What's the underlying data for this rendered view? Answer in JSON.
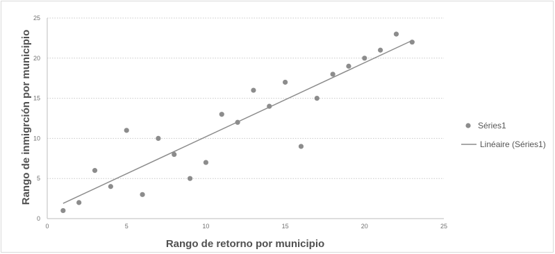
{
  "chart_data": {
    "type": "scatter",
    "title": "",
    "xlabel": "Rango de retorno por municipio",
    "ylabel": "Rango de inmigrción por municipio",
    "xlim": [
      0,
      25
    ],
    "ylim": [
      0,
      25
    ],
    "xticks": [
      "0",
      "5",
      "10",
      "15",
      "20",
      "25"
    ],
    "yticks": [
      "0",
      "5",
      "10",
      "15",
      "20",
      "25"
    ],
    "grid": "horizontal",
    "legend_position": "right",
    "series": [
      {
        "name": "Séries1",
        "color": "#8c8c8c",
        "points": [
          [
            1,
            1
          ],
          [
            2,
            2
          ],
          [
            3,
            6
          ],
          [
            4,
            4
          ],
          [
            5,
            11
          ],
          [
            6,
            3
          ],
          [
            7,
            10
          ],
          [
            8,
            8
          ],
          [
            9,
            5
          ],
          [
            10,
            7
          ],
          [
            11,
            13
          ],
          [
            12,
            12
          ],
          [
            13,
            16
          ],
          [
            14,
            14
          ],
          [
            15,
            17
          ],
          [
            16,
            9
          ],
          [
            17,
            15
          ],
          [
            18,
            18
          ],
          [
            19,
            19
          ],
          [
            20,
            20
          ],
          [
            21,
            21
          ],
          [
            22,
            23
          ],
          [
            23,
            22
          ]
        ]
      }
    ],
    "trendline": {
      "name": "Linéaire (Séries1)",
      "type": "linear",
      "color": "#8c8c8c",
      "from": [
        1,
        1.9
      ],
      "to": [
        23,
        22.2
      ]
    }
  }
}
